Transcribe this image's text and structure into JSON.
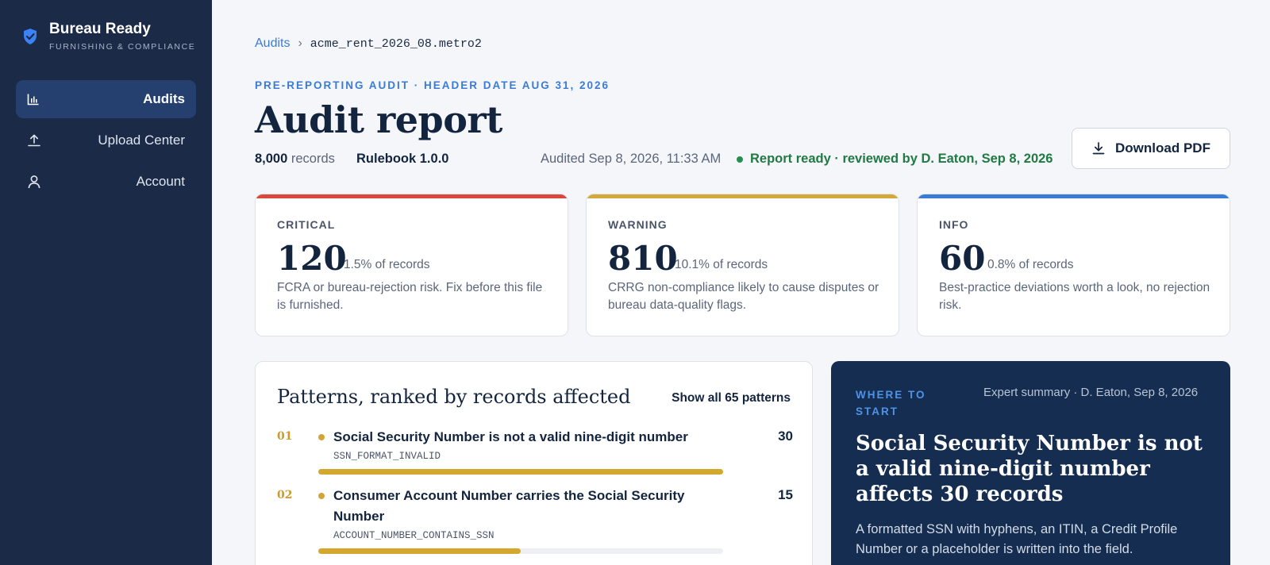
{
  "brand": {
    "name": "Bureau Ready",
    "tagline": "FURNISHING & COMPLIANCE"
  },
  "nav": [
    {
      "label": "Audits",
      "icon": "bar-chart-icon",
      "active": true
    },
    {
      "label": "Upload Center",
      "icon": "upload-icon",
      "active": false
    },
    {
      "label": "Account",
      "icon": "user-icon",
      "active": false
    }
  ],
  "breadcrumb": {
    "root": "Audits",
    "separator": "›",
    "current": "acme_rent_2026_08.metro2"
  },
  "header": {
    "eyebrow": "PRE-REPORTING AUDIT · HEADER DATE AUG 31, 2026",
    "title": "Audit report",
    "records_count": "8,000",
    "records_label": "records",
    "rulebook": "Rulebook 1.0.0",
    "audited": "Audited Sep 8, 2026, 11:33 AM",
    "status": "Report ready · reviewed by D. Eaton, Sep 8, 2026",
    "download_label": "Download PDF"
  },
  "colors": {
    "critical": "#d9483b",
    "warning": "#d4a83a",
    "info": "#3a7bd5",
    "status_green": "#1f7a44",
    "accent_blue": "#3a7bd5"
  },
  "stats": [
    {
      "label": "CRITICAL",
      "value": "120",
      "pct": "1.5% of records",
      "desc": "FCRA or bureau-rejection risk. Fix before this file is furnished."
    },
    {
      "label": "WARNING",
      "value": "810",
      "pct": "10.1% of records",
      "desc": "CRRG non-compliance likely to cause disputes or bureau data-quality flags."
    },
    {
      "label": "INFO",
      "value": "60",
      "pct": "0.8% of records",
      "desc": "Best-practice deviations worth a look, no rejection risk."
    }
  ],
  "patterns": {
    "title": "Patterns, ranked by records affected",
    "show_all": "Show all 65 patterns",
    "items": [
      {
        "rank": "01",
        "name": "Social Security Number is not a valid nine-digit number",
        "code": "SSN_FORMAT_INVALID",
        "count": "30",
        "share": 1.0
      },
      {
        "rank": "02",
        "name": "Consumer Account Number carries the Social Security Number",
        "code": "ACCOUNT_NUMBER_CONTAINS_SSN",
        "count": "15",
        "share": 0.5
      }
    ]
  },
  "where_to_start": {
    "eyebrow": "WHERE TO START",
    "meta": "Expert summary · D. Eaton, Sep 8, 2026",
    "title": "Social Security Number is not a valid nine-digit number affects 30 records",
    "body": "A formatted SSN with hyphens, an ITIN, a Credit Profile Number or a placeholder is written into the field."
  }
}
